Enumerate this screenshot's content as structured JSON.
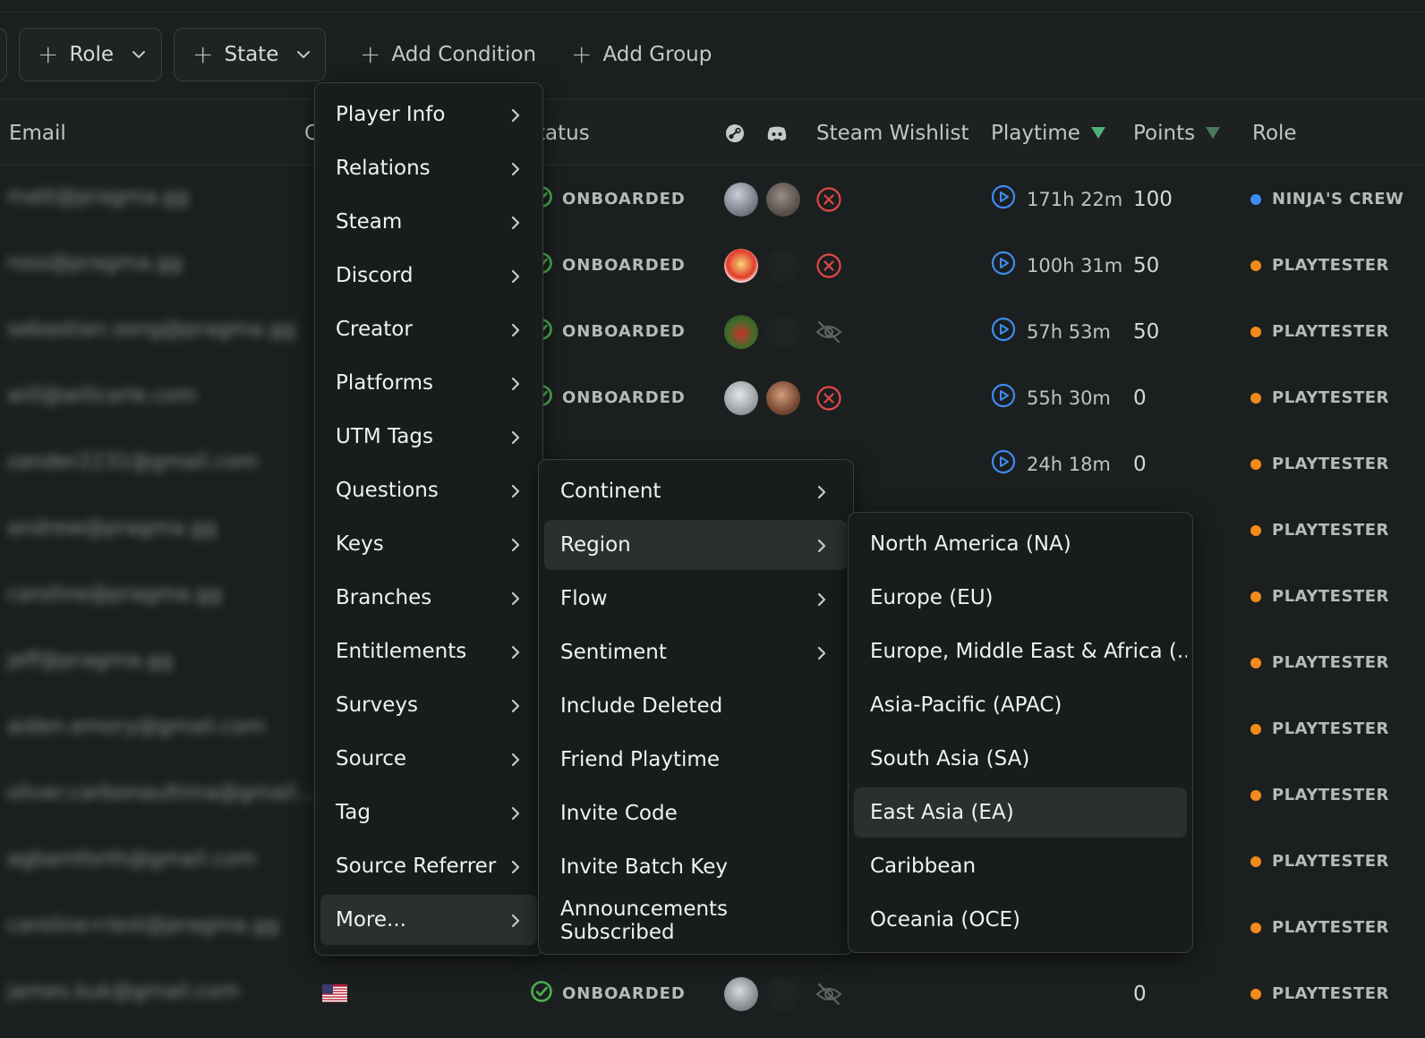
{
  "toolbar": {
    "role_label": "Role",
    "state_label": "State",
    "add_condition_label": "Add Condition",
    "add_group_label": "Add Group"
  },
  "table": {
    "headers": {
      "email": "Email",
      "country_partial": "C",
      "status_partial": "tatus",
      "steam_wishlist": "Steam Wishlist",
      "playtime": "Playtime",
      "points": "Points",
      "role": "Role"
    },
    "rows": [
      {
        "email": "matt@pragma.gg",
        "status": "ONBOARDED",
        "playtime": "171h 22m",
        "points": "100",
        "role": "NINJA'S CREW",
        "role_color": "#3d8cf0",
        "wishlist": "x"
      },
      {
        "email": "ross@pragma.gg",
        "status": "ONBOARDED",
        "playtime": "100h 31m",
        "points": "50",
        "role": "PLAYTESTER",
        "role_color": "#f28b1c",
        "wishlist": "x"
      },
      {
        "email": "sebastian.song@pragma.gg",
        "status": "ONBOARDED",
        "playtime": "57h 53m",
        "points": "50",
        "role": "PLAYTESTER",
        "role_color": "#f28b1c",
        "wishlist": "hidden"
      },
      {
        "email": "will@willcarle.com",
        "status": "ONBOARDED",
        "playtime": "55h 30m",
        "points": "0",
        "role": "PLAYTESTER",
        "role_color": "#f28b1c",
        "wishlist": "x"
      },
      {
        "email": "zander2231@gmail.com",
        "status": "",
        "playtime": "24h 18m",
        "points": "0",
        "role": "PLAYTESTER",
        "role_color": "#f28b1c",
        "wishlist": ""
      },
      {
        "email": "andrew@pragma.gg",
        "status": "",
        "playtime": "",
        "points": "",
        "role": "PLAYTESTER",
        "role_color": "#f28b1c",
        "wishlist": ""
      },
      {
        "email": "caroline@pragma.gg",
        "status": "",
        "playtime": "",
        "points": "",
        "role": "PLAYTESTER",
        "role_color": "#f28b1c",
        "wishlist": ""
      },
      {
        "email": "jeff@pragma.gg",
        "status": "",
        "playtime": "",
        "points": "",
        "role": "PLAYTESTER",
        "role_color": "#f28b1c",
        "wishlist": ""
      },
      {
        "email": "aiden.emory@gmail.com",
        "status": "",
        "playtime": "",
        "points": "",
        "role": "PLAYTESTER",
        "role_color": "#f28b1c",
        "wishlist": ""
      },
      {
        "email": "oliver.carbonaultima@gmail...",
        "status": "",
        "playtime": "",
        "points": "",
        "role": "PLAYTESTER",
        "role_color": "#f28b1c",
        "wishlist": ""
      },
      {
        "email": "agbamforth@gmail.com",
        "status": "",
        "playtime": "",
        "points": "",
        "role": "PLAYTESTER",
        "role_color": "#f28b1c",
        "wishlist": ""
      },
      {
        "email": "caroline+test@pragma.gg",
        "status": "",
        "playtime": "",
        "points": "",
        "role": "PLAYTESTER",
        "role_color": "#f28b1c",
        "wishlist": ""
      },
      {
        "email": "james.kuk@gmail.com",
        "status": "ONBOARDED",
        "playtime": "",
        "points": "0",
        "role": "PLAYTESTER",
        "role_color": "#f28b1c",
        "wishlist": "hidden"
      }
    ]
  },
  "menu_main": {
    "items": [
      "Player Info",
      "Relations",
      "Steam",
      "Discord",
      "Creator",
      "Platforms",
      "UTM Tags",
      "Questions",
      "Keys",
      "Branches",
      "Entitlements",
      "Surveys",
      "Source",
      "Tag",
      "Source Referrer",
      "More..."
    ],
    "active": "More..."
  },
  "menu_more": {
    "items": [
      {
        "label": "Continent",
        "has_submenu": true
      },
      {
        "label": "Region",
        "has_submenu": true
      },
      {
        "label": "Flow",
        "has_submenu": true
      },
      {
        "label": "Sentiment",
        "has_submenu": true
      },
      {
        "label": "Include Deleted",
        "has_submenu": false
      },
      {
        "label": "Friend Playtime",
        "has_submenu": false
      },
      {
        "label": "Invite Code",
        "has_submenu": false
      },
      {
        "label": "Invite Batch Key",
        "has_submenu": false
      },
      {
        "label": "Announcements Subscribed",
        "has_submenu": false
      }
    ],
    "active": "Region"
  },
  "menu_region": {
    "items": [
      "North America (NA)",
      "Europe (EU)",
      "Europe, Middle East & Africa (...",
      "Asia-Pacific (APAC)",
      "South Asia (SA)",
      "East Asia (EA)",
      "Caribbean",
      "Oceania (OCE)"
    ],
    "highlighted": "East Asia (EA)"
  },
  "colors": {
    "onboarded_icon": "#4caf50",
    "wishlist_x": "#e04848",
    "playtime_icon": "#3d8cf0",
    "sort_arrow": "#4fb07c",
    "role_playtester": "#f28b1c",
    "role_ninja": "#3d8cf0"
  },
  "icons": {
    "steam_header": "steam-icon",
    "discord_header": "discord-icon",
    "submenu_arrow": "chevron-right-icon",
    "dropdown": "chevron-down-icon",
    "add": "plus-icon"
  }
}
